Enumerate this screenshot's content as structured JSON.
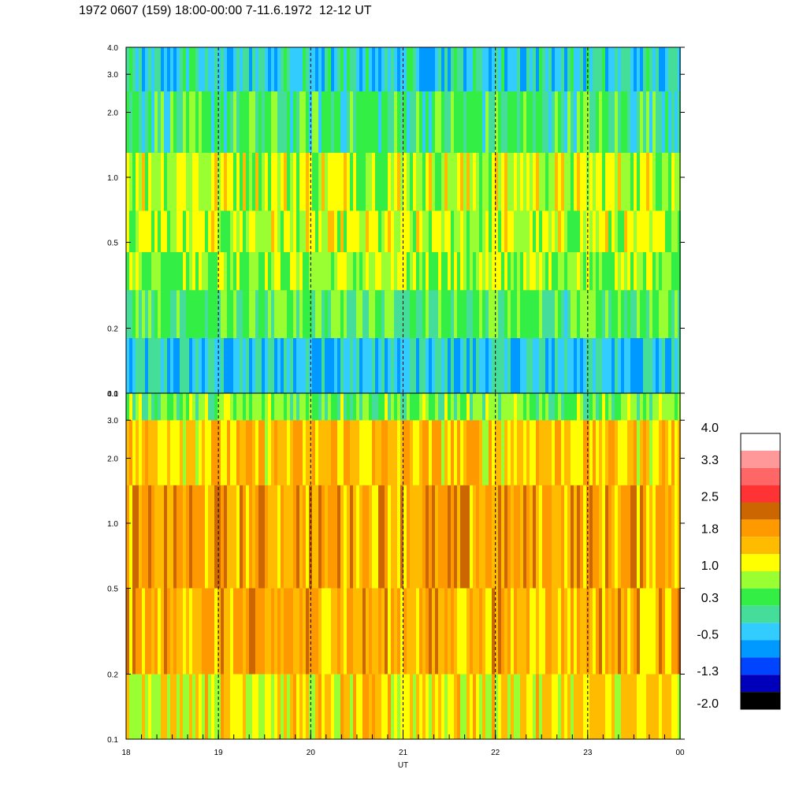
{
  "title": "1972 0607 (159) 18:00-00:00 7-11.6.1972  12-12 UT",
  "chart_data": {
    "type": "heatmap",
    "panels": [
      {
        "name": "",
        "yscale": "log",
        "ylim": [
          0.1,
          4.0
        ],
        "yticks": [
          "4.0",
          "3.0",
          "2.0",
          "1.0",
          "0.5",
          "0.2",
          "0.1"
        ],
        "dominant_level": 0.3,
        "bands": [
          {
            "y": [
              0.1,
              0.18
            ],
            "level": -0.3
          },
          {
            "y": [
              0.18,
              0.3
            ],
            "level": 0.4
          },
          {
            "y": [
              0.3,
              0.45
            ],
            "level": 0.8
          },
          {
            "y": [
              0.45,
              0.7
            ],
            "level": 0.9
          },
          {
            "y": [
              0.7,
              1.3
            ],
            "level": 1.0
          },
          {
            "y": [
              1.3,
              2.5
            ],
            "level": 0.3
          },
          {
            "y": [
              2.5,
              4.0
            ],
            "level": -0.2
          }
        ]
      },
      {
        "name": "",
        "yscale": "log",
        "ylim": [
          0.1,
          4.0
        ],
        "yticks": [
          "4.0",
          "3.0",
          "2.0",
          "1.0",
          "0.5",
          "0.2",
          "0.1"
        ],
        "dominant_level": 1.6,
        "bands": [
          {
            "y": [
              0.1,
              0.2
            ],
            "level": 1.3
          },
          {
            "y": [
              0.2,
              0.5
            ],
            "level": 1.7
          },
          {
            "y": [
              0.5,
              1.5
            ],
            "level": 1.8
          },
          {
            "y": [
              1.5,
              3.0
            ],
            "level": 1.5
          },
          {
            "y": [
              3.0,
              4.0
            ],
            "level": 0.6
          }
        ]
      }
    ],
    "x": {
      "label": "UT",
      "range": [
        18,
        24
      ],
      "ticks": [
        "18",
        "19",
        "20",
        "21",
        "22",
        "23",
        "00"
      ],
      "dashed_gridlines_at": [
        19,
        20,
        21,
        22,
        23
      ]
    },
    "colorbar": {
      "labels": [
        "4.0",
        "3.3",
        "2.5",
        "1.8",
        "1.0",
        "0.3",
        "-0.5",
        "-1.3",
        "-2.0"
      ],
      "colors": [
        "#ffffff",
        "#ff9999",
        "#ff6666",
        "#ff3333",
        "#cc6600",
        "#ff9900",
        "#ffbb00",
        "#ffff00",
        "#99ff33",
        "#33ee44",
        "#44dd99",
        "#33ccff",
        "#0099ff",
        "#0044ff",
        "#0000bb",
        "#000000"
      ]
    }
  }
}
